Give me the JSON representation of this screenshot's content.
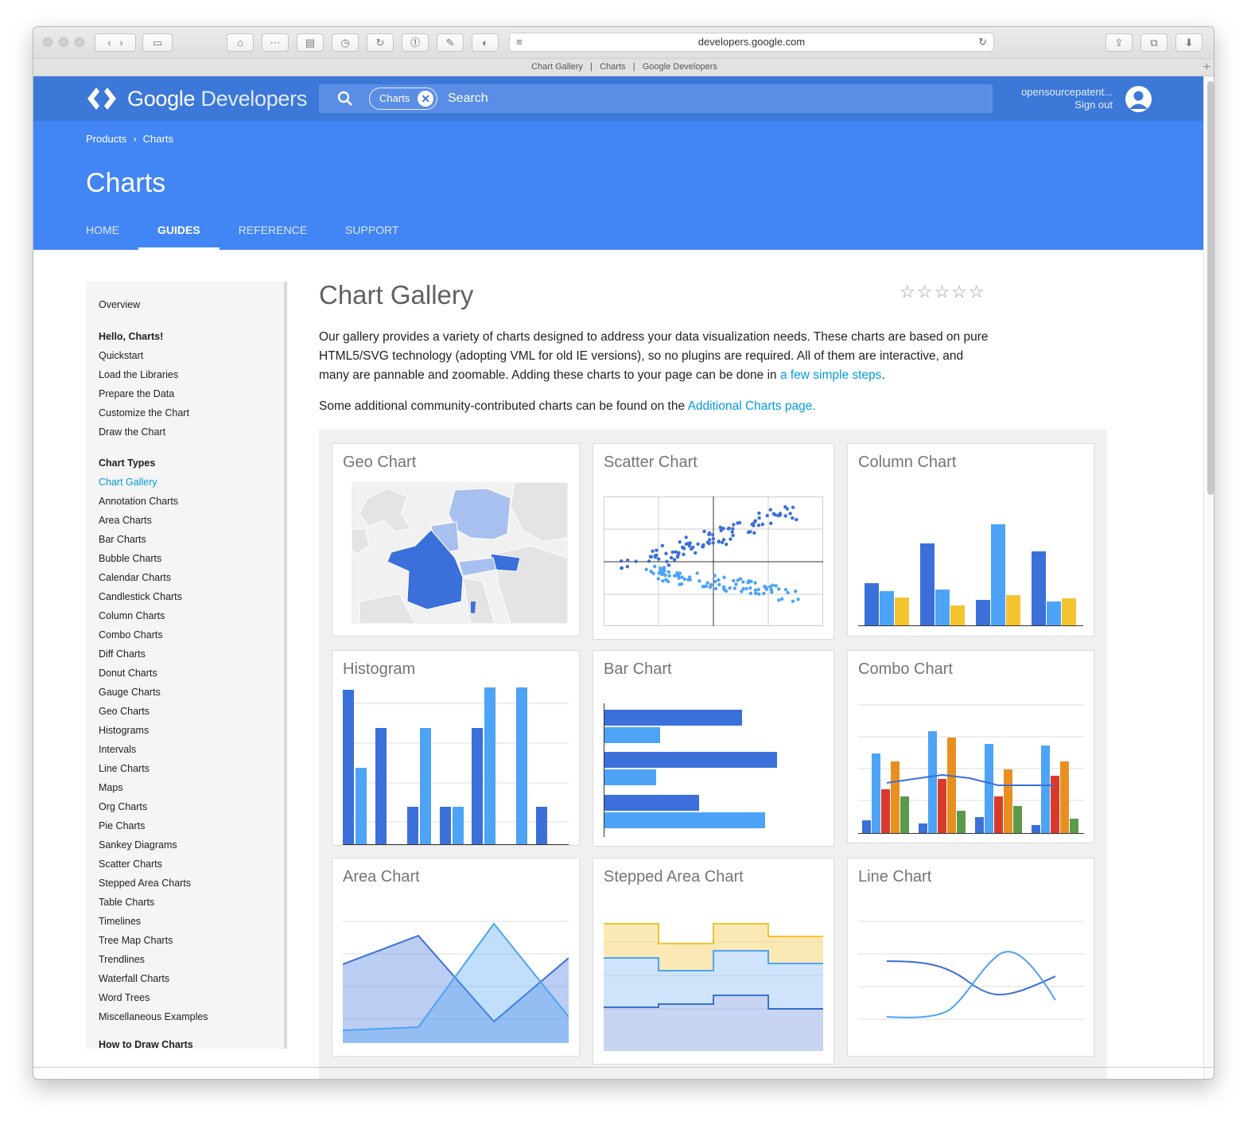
{
  "browser": {
    "url": "developers.google.com",
    "tab_title": [
      "Chart Gallery",
      "Charts",
      "Google Developers"
    ],
    "tab_sep": "|",
    "new_tab": "+"
  },
  "header": {
    "logo_brand": "Google",
    "logo_product": "Developers",
    "search_chip": "Charts",
    "chip_clear": "✕",
    "search_placeholder": "Search",
    "user_name": "opensourcepatent...",
    "sign_out": "Sign out"
  },
  "breadcrumb": {
    "items": [
      "Products",
      "Charts"
    ],
    "sep": "›"
  },
  "hero": {
    "title": "Charts"
  },
  "nav_tabs": [
    {
      "label": "HOME"
    },
    {
      "label": "GUIDES"
    },
    {
      "label": "REFERENCE"
    },
    {
      "label": "SUPPORT"
    }
  ],
  "sidebar": {
    "items": [
      {
        "label": "Overview"
      },
      {
        "label": "Hello, Charts!"
      },
      {
        "label": "Quickstart"
      },
      {
        "label": "Load the Libraries"
      },
      {
        "label": "Prepare the Data"
      },
      {
        "label": "Customize the Chart"
      },
      {
        "label": "Draw the Chart"
      },
      {
        "label": "Chart Types"
      },
      {
        "label": "Chart Gallery"
      },
      {
        "label": "Annotation Charts"
      },
      {
        "label": "Area Charts"
      },
      {
        "label": "Bar Charts"
      },
      {
        "label": "Bubble Charts"
      },
      {
        "label": "Calendar Charts"
      },
      {
        "label": "Candlestick Charts"
      },
      {
        "label": "Column Charts"
      },
      {
        "label": "Combo Charts"
      },
      {
        "label": "Diff Charts"
      },
      {
        "label": "Donut Charts"
      },
      {
        "label": "Gauge Charts"
      },
      {
        "label": "Geo Charts"
      },
      {
        "label": "Histograms"
      },
      {
        "label": "Intervals"
      },
      {
        "label": "Line Charts"
      },
      {
        "label": "Maps"
      },
      {
        "label": "Org Charts"
      },
      {
        "label": "Pie Charts"
      },
      {
        "label": "Sankey Diagrams"
      },
      {
        "label": "Scatter Charts"
      },
      {
        "label": "Stepped Area Charts"
      },
      {
        "label": "Table Charts"
      },
      {
        "label": "Timelines"
      },
      {
        "label": "Tree Map Charts"
      },
      {
        "label": "Trendlines"
      },
      {
        "label": "Waterfall Charts"
      },
      {
        "label": "Word Trees"
      },
      {
        "label": "Miscellaneous Examples"
      },
      {
        "label": "How to Draw Charts"
      }
    ]
  },
  "main": {
    "title": "Chart Gallery",
    "rating": "☆☆☆☆☆",
    "intro": "Our gallery provides a variety of charts designed to address your data visualization needs. These charts are based on pure HTML5/SVG technology (adopting VML for old IE versions), so no plugins are required. All of them are interactive, and many are pannable and zoomable. Adding these charts to your page can be done in ",
    "intro_link": "a few simple steps",
    "intro_end": ".",
    "additional": "Some additional community-contributed charts can be found on the ",
    "additional_link": "Additional Charts page."
  },
  "gallery": {
    "cards": [
      {
        "title": "Geo Chart"
      },
      {
        "title": "Scatter Chart"
      },
      {
        "title": "Column Chart"
      },
      {
        "title": "Histogram"
      },
      {
        "title": "Bar Chart"
      },
      {
        "title": "Combo Chart"
      },
      {
        "title": "Area Chart"
      },
      {
        "title": "Stepped Area Chart"
      },
      {
        "title": "Line Chart"
      }
    ]
  },
  "colors": {
    "brand_blue": "#3c78d8",
    "hero_blue": "#4285f4",
    "link": "#039be5",
    "series_dark": "#3b6fd9",
    "series_light": "#4da3f5",
    "series_yellow": "#f4c430",
    "series_red": "#d93a2b",
    "series_orange": "#e8901f",
    "series_green": "#5b9a4b"
  }
}
